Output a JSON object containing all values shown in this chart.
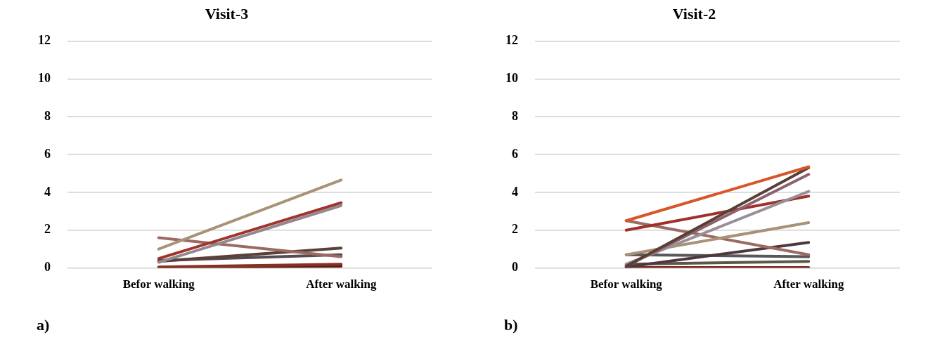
{
  "chart_data": [
    {
      "type": "line",
      "title": "Visit-3",
      "categories": [
        "Befor walking",
        "After walking"
      ],
      "ylim": [
        0,
        12
      ],
      "yticks": [
        0,
        2,
        4,
        6,
        8,
        10,
        12
      ],
      "grid": "y",
      "legend": false,
      "marker": "none",
      "annotations": [
        "a)"
      ],
      "series": [
        {
          "color": "#a89278",
          "values": [
            1.0,
            4.65
          ]
        },
        {
          "color": "#a0332c",
          "values": [
            0.5,
            3.45
          ]
        },
        {
          "color": "#938890",
          "values": [
            0.3,
            3.3
          ]
        },
        {
          "color": "#9c6a62",
          "values": [
            1.6,
            0.6
          ]
        },
        {
          "color": "#5a4038",
          "values": [
            0.35,
            1.05
          ]
        },
        {
          "color": "#554b50",
          "values": [
            0.4,
            0.7
          ]
        },
        {
          "color": "#8a3020",
          "values": [
            0.05,
            0.2
          ]
        },
        {
          "color": "#5e1c14",
          "values": [
            0.02,
            0.1
          ]
        }
      ]
    },
    {
      "type": "line",
      "title": "Visit-2",
      "categories": [
        "Befor walking",
        "After walking"
      ],
      "ylim": [
        0,
        12
      ],
      "yticks": [
        0,
        2,
        4,
        6,
        8,
        10,
        12
      ],
      "grid": "y",
      "legend": false,
      "marker": "none",
      "annotations": [
        "b)"
      ],
      "series": [
        {
          "color": "#d9562a",
          "values": [
            2.5,
            5.35
          ]
        },
        {
          "color": "#5a3f35",
          "values": [
            0.1,
            5.3
          ]
        },
        {
          "color": "#8c6270",
          "values": [
            0.1,
            4.95
          ]
        },
        {
          "color": "#999096",
          "values": [
            0.2,
            4.05
          ]
        },
        {
          "color": "#a0302a",
          "values": [
            2.0,
            3.8
          ]
        },
        {
          "color": "#a89278",
          "values": [
            0.7,
            2.4
          ]
        },
        {
          "color": "#9c6a62",
          "values": [
            2.5,
            0.7
          ]
        },
        {
          "color": "#4e3840",
          "values": [
            0.05,
            1.35
          ]
        },
        {
          "color": "#5a565a",
          "values": [
            0.7,
            0.6
          ]
        },
        {
          "color": "#5c5848",
          "values": [
            0.2,
            0.35
          ]
        },
        {
          "color": "#7a2a20",
          "values": [
            0.02,
            0.02
          ]
        }
      ]
    }
  ]
}
